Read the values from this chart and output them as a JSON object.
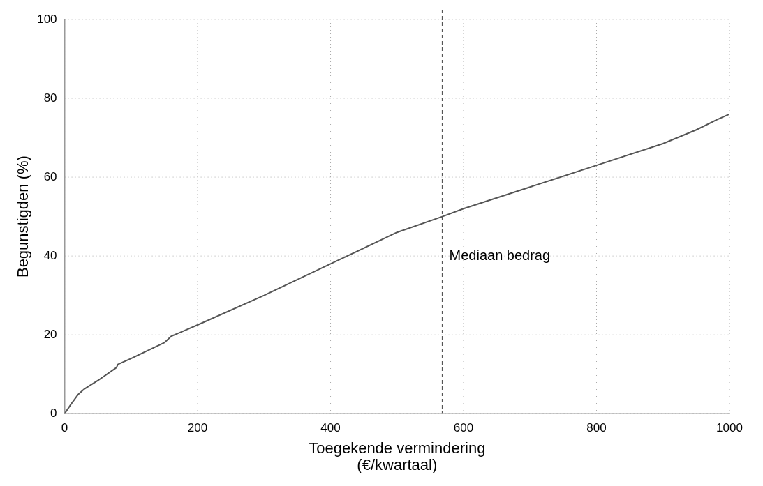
{
  "chart_data": {
    "type": "line",
    "xlabel": "Toegekende vermindering\n(€/kwartaal)",
    "ylabel": "Begunstigden (%)",
    "x": [
      0,
      10,
      20,
      30,
      50,
      78,
      80,
      100,
      150,
      160,
      200,
      300,
      400,
      500,
      568,
      600,
      700,
      800,
      900,
      950,
      980,
      1000,
      1000
    ],
    "series": [
      {
        "color": "#555555",
        "values": [
          0,
          2.5,
          4.8,
          6.3,
          8.4,
          11.7,
          12.5,
          14,
          18,
          19.6,
          22.5,
          30,
          38,
          46,
          50,
          52,
          57.5,
          63,
          68.5,
          72,
          74.5,
          76,
          99
        ]
      }
    ],
    "xlim": [
      0,
      1000
    ],
    "xticks": [
      0,
      200,
      400,
      600,
      800,
      1000
    ],
    "ylim": [
      0,
      100
    ],
    "yticks": [
      0,
      20,
      40,
      60,
      80,
      100
    ],
    "grid": true,
    "legend": false,
    "marker": "none",
    "line_style": "solid",
    "ref_lines": [
      {
        "axis": "x",
        "value": 568,
        "label": "Mediaan bedrag",
        "color": "#555555",
        "line_style": "dashed"
      }
    ]
  }
}
